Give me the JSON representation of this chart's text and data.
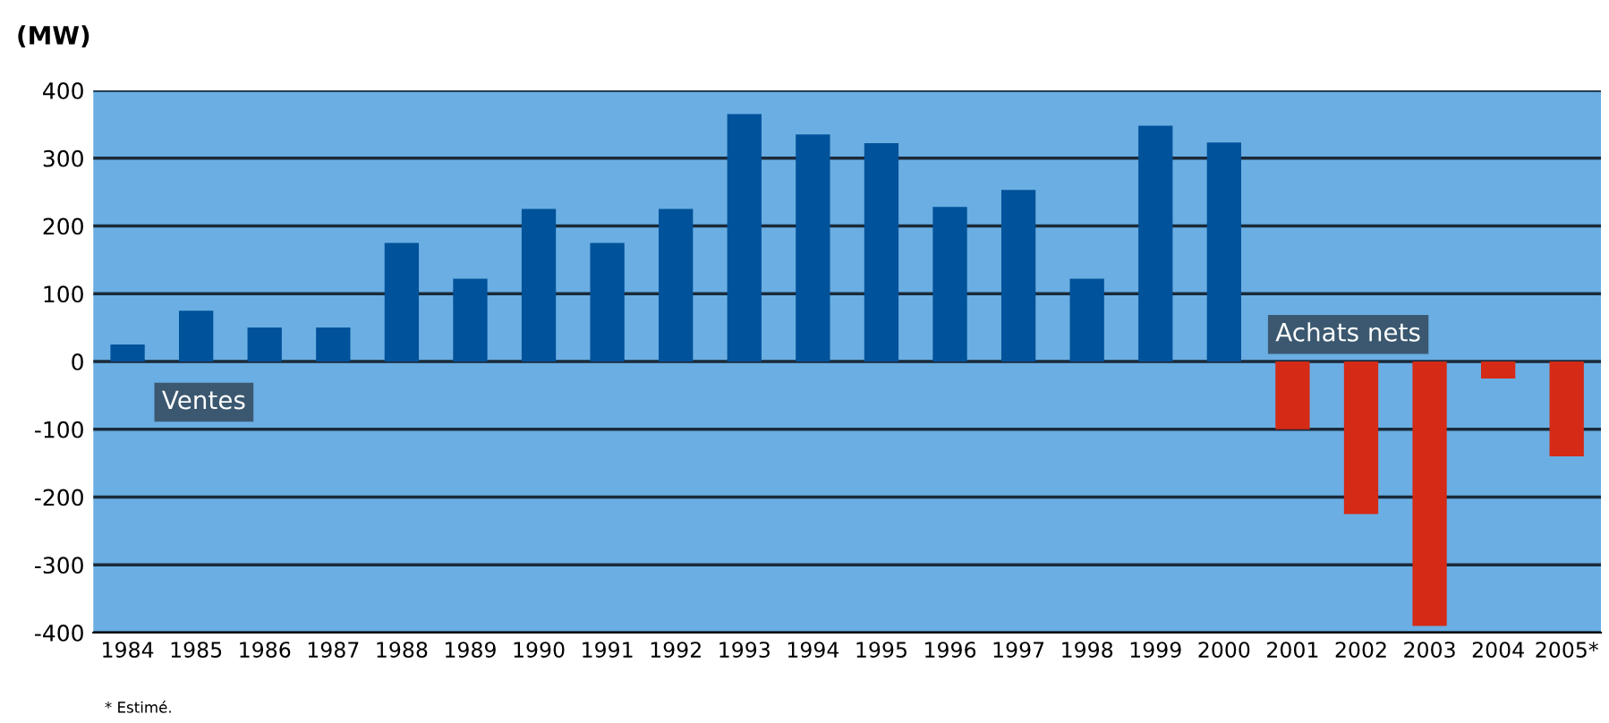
{
  "chart_data": {
    "type": "bar",
    "ylabel": "(MW)",
    "categories": [
      "1984",
      "1985",
      "1986",
      "1987",
      "1988",
      "1989",
      "1990",
      "1991",
      "1992",
      "1993",
      "1994",
      "1995",
      "1996",
      "1997",
      "1998",
      "1999",
      "2000",
      "2001",
      "2002",
      "2003",
      "2004",
      "2005*"
    ],
    "values": [
      25,
      75,
      50,
      50,
      175,
      122,
      225,
      175,
      225,
      365,
      335,
      322,
      228,
      253,
      122,
      348,
      323,
      -100,
      -225,
      -390,
      -25,
      -140
    ],
    "colors": [
      "#00529a",
      "#00529a",
      "#00529a",
      "#00529a",
      "#00529a",
      "#00529a",
      "#00529a",
      "#00529a",
      "#00529a",
      "#00529a",
      "#00529a",
      "#00529a",
      "#00529a",
      "#00529a",
      "#00529a",
      "#00529a",
      "#00529a",
      "#d42a16",
      "#d42a16",
      "#d42a16",
      "#d42a16",
      "#d42a16"
    ],
    "ylim": [
      -400,
      400
    ],
    "yticks": [
      -400,
      -300,
      -200,
      -100,
      0,
      100,
      200,
      300,
      400
    ],
    "grid": "y",
    "annotations": [
      "Ventes",
      "Achats nets",
      "* Estimé."
    ]
  }
}
